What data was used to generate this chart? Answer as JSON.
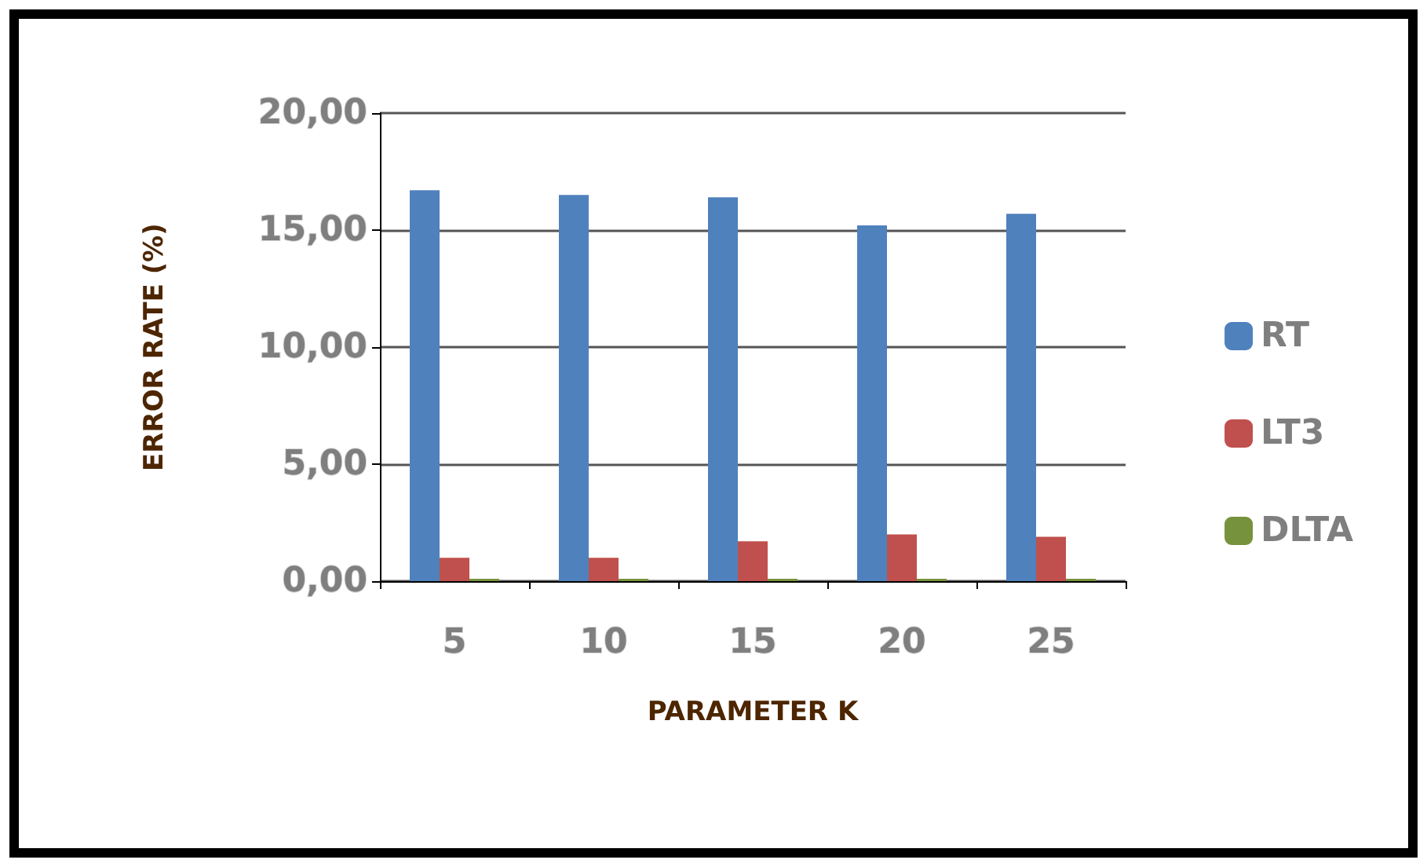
{
  "chart_data": {
    "type": "bar",
    "xlabel": "PARAMETER K",
    "ylabel": "ERROR RATE (%)",
    "categories": [
      "5",
      "10",
      "15",
      "20",
      "25"
    ],
    "series": [
      {
        "name": "RT",
        "color": "#4f81bd",
        "values": [
          16.7,
          16.5,
          16.4,
          15.2,
          15.7
        ]
      },
      {
        "name": "LT3",
        "color": "#c0504d",
        "values": [
          1.0,
          1.0,
          1.7,
          2.0,
          1.9
        ]
      },
      {
        "name": "DLTA",
        "color": "#76923c",
        "values": [
          0.1,
          0.1,
          0.1,
          0.1,
          0.1
        ]
      }
    ],
    "ylim": [
      0,
      20
    ],
    "yticks": [
      {
        "value": 0,
        "label": "0,00"
      },
      {
        "value": 5,
        "label": "5,00"
      },
      {
        "value": 10,
        "label": "10,00"
      },
      {
        "value": 15,
        "label": "15,00"
      },
      {
        "value": 20,
        "label": "20,00"
      }
    ],
    "grid": "y",
    "legend": "right"
  }
}
